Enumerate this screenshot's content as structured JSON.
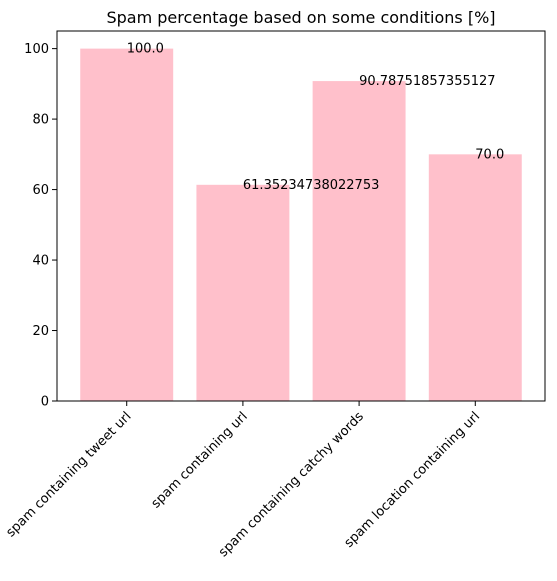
{
  "chart_data": {
    "type": "bar",
    "title": "Spam percentage based on some conditions [%]",
    "xlabel": "",
    "ylabel": "",
    "categories": [
      "spam containing tweet url",
      "spam containing url",
      "spam containing catchy words",
      "spam location containing url"
    ],
    "values": [
      100.0,
      61.35234738022753,
      90.78751857355127,
      70.0
    ],
    "data_labels": [
      "100.0",
      "61.35234738022753",
      "90.78751857355127",
      "70.0"
    ],
    "ylim": [
      0,
      105
    ],
    "yticks": [
      0,
      20,
      40,
      60,
      80,
      100
    ],
    "bar_color": "#ffc0cb",
    "grid": false,
    "legend": "none"
  }
}
